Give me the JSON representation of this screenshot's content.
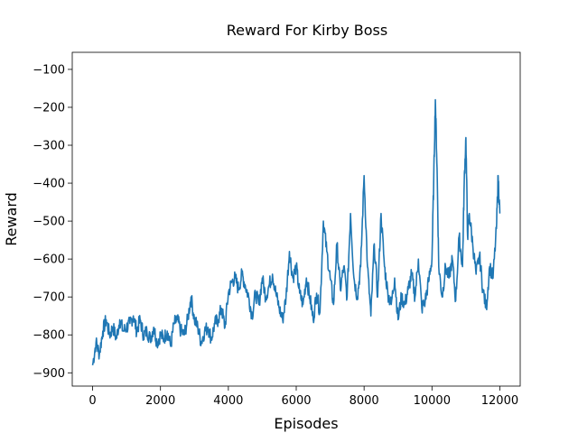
{
  "chart_data": {
    "type": "line",
    "title": "Reward For Kirby Boss",
    "xlabel": "Episodes",
    "ylabel": "Reward",
    "xlim": [
      -600,
      12600
    ],
    "ylim": [
      -935,
      -55
    ],
    "x_ticks": [
      0,
      2000,
      4000,
      6000,
      8000,
      10000,
      12000
    ],
    "y_ticks": [
      -900,
      -800,
      -700,
      -600,
      -500,
      -400,
      -300,
      -200,
      -100
    ],
    "x_tick_labels": [
      "0",
      "2000",
      "4000",
      "6000",
      "8000",
      "10000",
      "12000"
    ],
    "y_tick_labels": [
      "−900",
      "−800",
      "−700",
      "−600",
      "−500",
      "−400",
      "−300",
      "−200",
      "−100"
    ],
    "grid": false,
    "legend": "none",
    "line_color": "#1f77b4",
    "series": [
      {
        "x": [
          0,
          100,
          200,
          300,
          400,
          500,
          600,
          700,
          800,
          900,
          1000,
          1100,
          1200,
          1300,
          1400,
          1500,
          1600,
          1700,
          1800,
          1900,
          2000,
          2100,
          2200,
          2300,
          2400,
          2500,
          2600,
          2700,
          2800,
          2900,
          3000,
          3100,
          3200,
          3300,
          3400,
          3500,
          3600,
          3700,
          3800,
          3900,
          4000,
          4100,
          4200,
          4300,
          4400,
          4500,
          4600,
          4700,
          4800,
          4900,
          5000,
          5100,
          5200,
          5300,
          5400,
          5500,
          5600,
          5700,
          5800,
          5900,
          6000,
          6100,
          6200,
          6300,
          6400,
          6500,
          6600,
          6700,
          6800,
          6900,
          7000,
          7100,
          7200,
          7300,
          7400,
          7500,
          7600,
          7700,
          7800,
          7900,
          8000,
          8100,
          8200,
          8300,
          8400,
          8500,
          8600,
          8700,
          8800,
          8900,
          9000,
          9100,
          9200,
          9300,
          9400,
          9500,
          9600,
          9700,
          9800,
          9900,
          10000,
          10050,
          10100,
          10150,
          10200,
          10300,
          10400,
          10500,
          10600,
          10700,
          10800,
          10900,
          10950,
          11000,
          11050,
          11100,
          11200,
          11300,
          11400,
          11500,
          11600,
          11700,
          11800,
          11900,
          11950,
          12000
        ],
        "values": [
          -880,
          -820,
          -850,
          -790,
          -760,
          -800,
          -780,
          -810,
          -760,
          -790,
          -780,
          -770,
          -750,
          -790,
          -760,
          -800,
          -790,
          -810,
          -780,
          -820,
          -800,
          -810,
          -790,
          -830,
          -770,
          -760,
          -790,
          -800,
          -760,
          -700,
          -760,
          -780,
          -820,
          -790,
          -780,
          -810,
          -770,
          -760,
          -730,
          -780,
          -690,
          -660,
          -650,
          -680,
          -640,
          -670,
          -700,
          -750,
          -690,
          -720,
          -650,
          -700,
          -670,
          -640,
          -690,
          -730,
          -760,
          -700,
          -580,
          -650,
          -620,
          -690,
          -720,
          -650,
          -700,
          -760,
          -690,
          -740,
          -500,
          -580,
          -650,
          -720,
          -560,
          -680,
          -620,
          -700,
          -480,
          -650,
          -700,
          -620,
          -380,
          -620,
          -750,
          -560,
          -700,
          -480,
          -620,
          -690,
          -720,
          -650,
          -760,
          -700,
          -720,
          -680,
          -640,
          -700,
          -600,
          -730,
          -710,
          -660,
          -600,
          -400,
          -180,
          -360,
          -620,
          -700,
          -620,
          -650,
          -600,
          -710,
          -540,
          -620,
          -400,
          -280,
          -540,
          -480,
          -560,
          -640,
          -590,
          -680,
          -730,
          -620,
          -650,
          -520,
          -380,
          -480
        ]
      }
    ]
  }
}
